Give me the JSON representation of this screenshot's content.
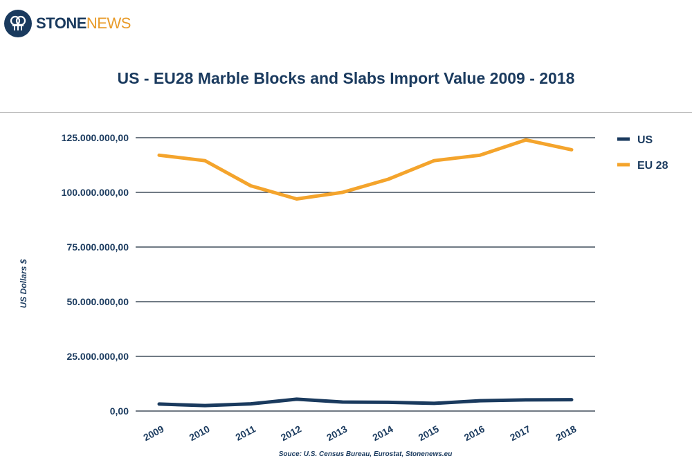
{
  "brand": {
    "name_part1": "STONE",
    "name_part2": "NEWS"
  },
  "chart_data": {
    "type": "line",
    "title": "US - EU28 Marble Blocks and Slabs Import Value 2009 - 2018",
    "xlabel": "",
    "ylabel": "US Dollars $",
    "categories": [
      "2009",
      "2010",
      "2011",
      "2012",
      "2013",
      "2014",
      "2015",
      "2016",
      "2017",
      "2018"
    ],
    "yticks": [
      "0,00",
      "25.000.000,00",
      "50.000.000,00",
      "75.000.000,00",
      "100.000.000,00",
      "125.000.000,00"
    ],
    "ylim": [
      0,
      125000000
    ],
    "grid": true,
    "legend_position": "top-right",
    "series": [
      {
        "name": "US",
        "color": "#1a3a5e",
        "values": [
          3200000,
          2500000,
          3300000,
          5400000,
          4100000,
          4000000,
          3500000,
          4700000,
          5100000,
          5200000
        ]
      },
      {
        "name": "EU 28",
        "color": "#f4a42c",
        "values": [
          117000000,
          114500000,
          103000000,
          97000000,
          100000000,
          106000000,
          114500000,
          117000000,
          124000000,
          119500000
        ]
      }
    ],
    "source": "Souce: U.S. Census Bureau, Eurostat, Stonenews.eu"
  }
}
